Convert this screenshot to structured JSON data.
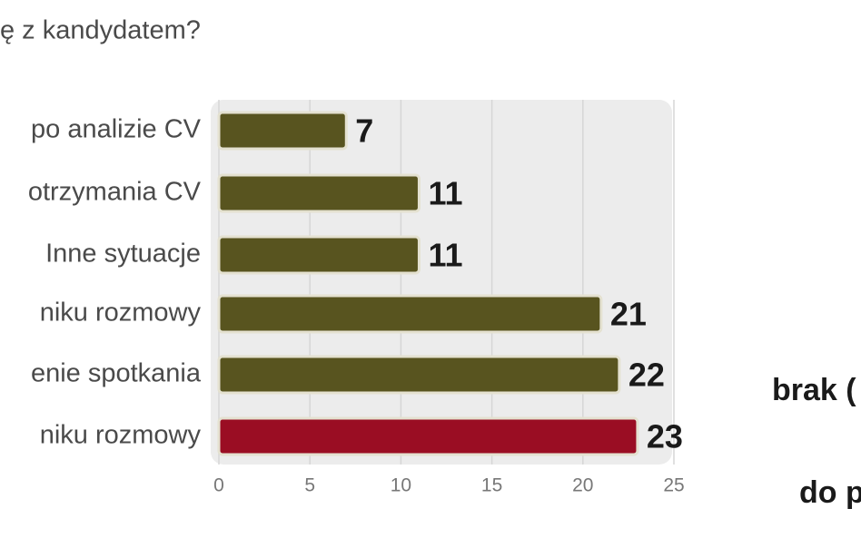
{
  "chart_data": {
    "type": "bar",
    "orientation": "horizontal",
    "title": "ę z kandydatem?",
    "categories": [
      "po analizie CV",
      "otrzymania CV",
      "Inne sytuacje",
      "niku rozmowy",
      "enie spotkania",
      "niku rozmowy"
    ],
    "values": [
      7,
      11,
      11,
      21,
      22,
      23
    ],
    "colors": [
      "#58541f",
      "#58541f",
      "#58541f",
      "#58541f",
      "#58541f",
      "#9a0d23"
    ],
    "xlim": [
      0,
      25
    ],
    "xticks": [
      0,
      5,
      10,
      15,
      20,
      25
    ],
    "grid": true,
    "annotations": [
      "brak (",
      "do p"
    ]
  }
}
